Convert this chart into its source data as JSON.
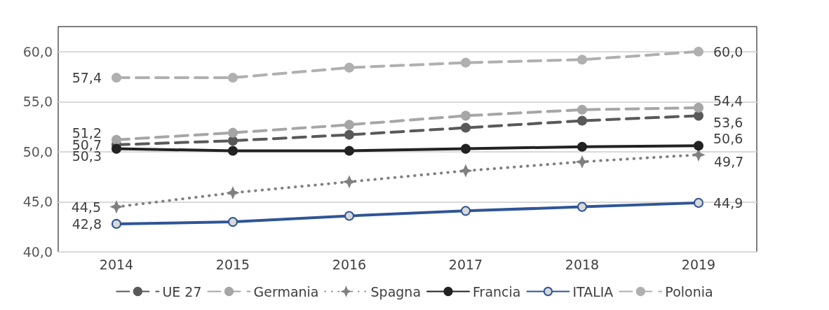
{
  "chart_data": {
    "type": "line",
    "categories": [
      "2014",
      "2015",
      "2016",
      "2017",
      "2018",
      "2019"
    ],
    "ylim": [
      40,
      62.5
    ],
    "yticks": [
      {
        "value": 40,
        "label": "40,0"
      },
      {
        "value": 45,
        "label": "45,0"
      },
      {
        "value": 50,
        "label": "50,0"
      },
      {
        "value": 55,
        "label": "55,0"
      },
      {
        "value": 60,
        "label": "60,0"
      }
    ],
    "grid": "y",
    "legend": "bottom",
    "marker": "circle",
    "series": [
      {
        "name": "UE 27",
        "color": "#595959",
        "line_style": "dashed",
        "values": [
          50.7,
          51.1,
          51.7,
          52.4,
          53.1,
          53.6
        ],
        "value_labels": [
          "50,7",
          null,
          null,
          null,
          null,
          "53,6"
        ]
      },
      {
        "name": "Germania",
        "color": "#a6a6a6",
        "line_style": "dashed",
        "values": [
          51.2,
          51.9,
          52.7,
          53.6,
          54.2,
          54.4
        ],
        "value_labels": [
          "51,2",
          null,
          null,
          null,
          null,
          "54,4"
        ]
      },
      {
        "name": "Spagna",
        "color": "#808080",
        "line_style": "dotted",
        "marker": "star",
        "values": [
          44.5,
          45.9,
          47.0,
          48.1,
          49.0,
          49.7
        ],
        "value_labels": [
          "44,5",
          null,
          null,
          null,
          null,
          "49,7"
        ]
      },
      {
        "name": "Francia",
        "color": "#222222",
        "line_style": "solid",
        "values": [
          50.3,
          50.1,
          50.1,
          50.3,
          50.5,
          50.6
        ],
        "value_labels": [
          "50,3",
          null,
          null,
          null,
          null,
          "50,6"
        ]
      },
      {
        "name": "ITALIA",
        "color": "#2f5597",
        "line_style": "solid",
        "values": [
          42.8,
          43.0,
          43.6,
          44.1,
          44.5,
          44.9
        ],
        "value_labels": [
          "42,8",
          null,
          null,
          null,
          null,
          "44,9"
        ]
      },
      {
        "name": "Polonia",
        "color": "#b0b0b0",
        "line_style": "dashed",
        "values": [
          57.4,
          57.4,
          58.4,
          58.9,
          59.2,
          60.0
        ],
        "value_labels": [
          "57,4",
          null,
          null,
          null,
          null,
          "60,0"
        ]
      }
    ]
  }
}
